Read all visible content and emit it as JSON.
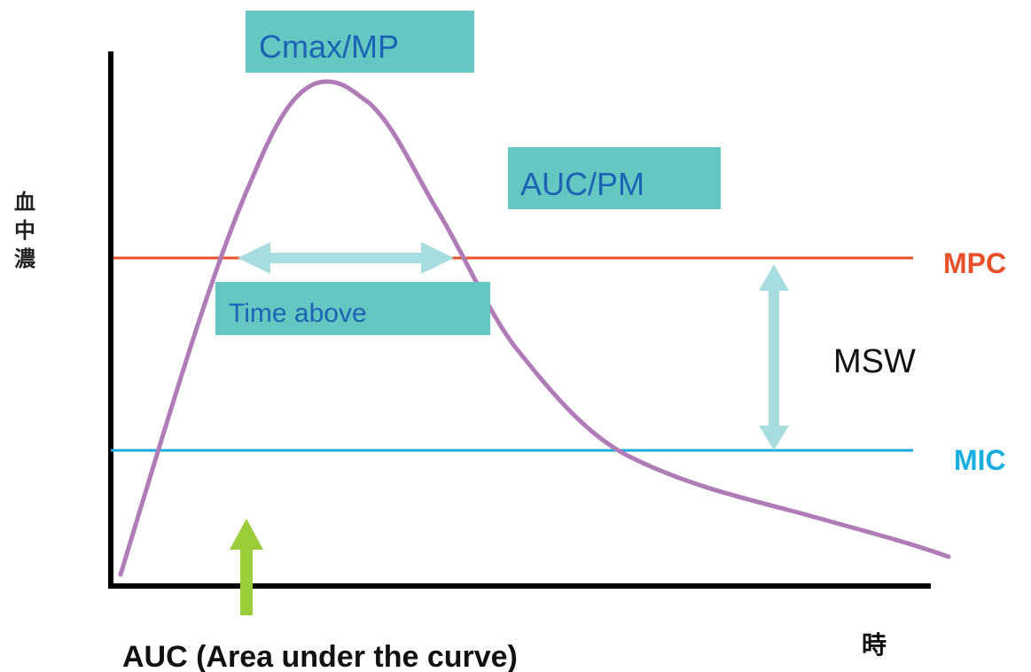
{
  "axes": {
    "y_label": "血\n中\n濃",
    "x_label": "時"
  },
  "lines": {
    "mpc": {
      "label": "MPC",
      "color": "#e8502a"
    },
    "mic": {
      "label": "MIC",
      "color": "#1aaee0"
    }
  },
  "curve": {
    "color": "#b07cb8"
  },
  "boxes": {
    "cmax": {
      "label": "Cmax/MP"
    },
    "auc_pm": {
      "label": "AUC/PM"
    },
    "time_above": {
      "label": "Time above"
    },
    "fill": "#66c7c2",
    "text_color": "#1a64b4"
  },
  "msw": {
    "label": "MSW"
  },
  "auc_note": {
    "label": "AUC (Area under the curve)",
    "arrow_color": "#9bcc3a"
  },
  "arrow_color": "#a8dde0"
}
